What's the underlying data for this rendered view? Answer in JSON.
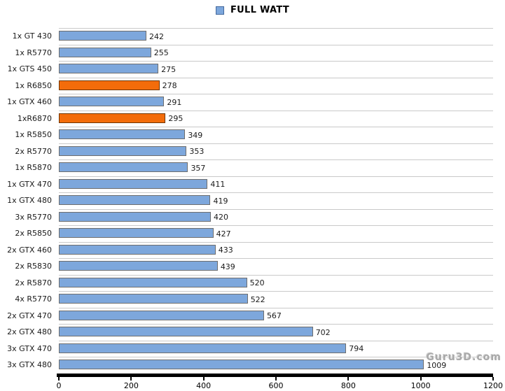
{
  "legend": {
    "label": "FULL WATT",
    "swatch_color": "#7da7dc",
    "swatch_border": "#44699d"
  },
  "watermark": "Guru3D.com",
  "chart_data": {
    "type": "bar",
    "orientation": "horizontal",
    "title": "FULL WATT",
    "xlabel": "",
    "ylabel": "",
    "categories": [
      "1x GT 430",
      "1x R5770",
      "1x GTS 450",
      "1x R6850",
      "1x GTX 460",
      "1xR6870",
      "1x R5850",
      "2x R5770",
      "1x R5870",
      "1x GTX 470",
      "1x GTX 480",
      "3x R5770",
      "2x R5850",
      "2x GTX 460",
      "2x R5830",
      "2x R5870",
      "4x R5770",
      "2x GTX 470",
      "2x GTX 480",
      "3x GTX 470",
      "3x GTX 480"
    ],
    "values": [
      242,
      255,
      275,
      278,
      291,
      295,
      349,
      353,
      357,
      411,
      419,
      420,
      427,
      433,
      439,
      520,
      522,
      567,
      702,
      794,
      1009
    ],
    "highlighted_indices": [
      3,
      5
    ],
    "colors": {
      "bar_fill": "#7da7dc",
      "bar_border": "#6e6e6e",
      "highlight_fill": "#f36c0a",
      "highlight_border": "#6f3500",
      "separator_line": "#c9c9c9",
      "axis": "#000000"
    },
    "xlim": [
      0,
      1200
    ],
    "x_ticks": [
      0,
      200,
      400,
      600,
      800,
      1000,
      1200
    ],
    "grid": "horizontal row separators, legend top center, no vertical gridlines"
  }
}
